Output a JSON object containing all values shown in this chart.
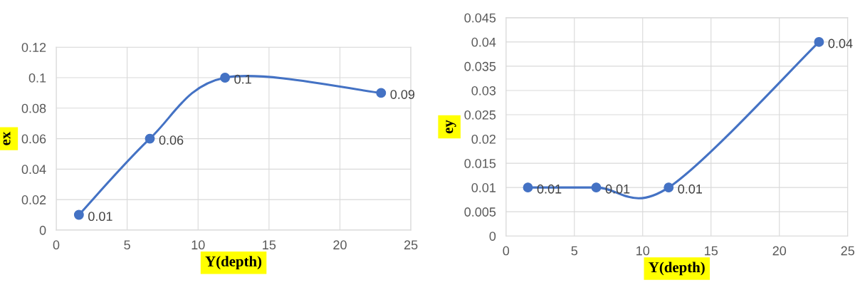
{
  "chart_data": [
    {
      "type": "line",
      "xlabel": "Y(depth)",
      "ylabel": "ex",
      "x": [
        1.6,
        6.6,
        11.9,
        22.9
      ],
      "series": [
        {
          "color": "#4472c4",
          "values": [
            0.01,
            0.06,
            0.1,
            0.09
          ]
        }
      ],
      "xlim": [
        0,
        25
      ],
      "xticks": [
        0,
        5,
        10,
        15,
        20,
        25
      ],
      "ylim": [
        0,
        0.12
      ],
      "yticks": [
        0,
        0.02,
        0.04,
        0.06,
        0.08,
        0.1,
        0.12
      ],
      "grid": true,
      "marker": "circle",
      "line_style": "solid",
      "data_labels": true,
      "legend": false
    },
    {
      "type": "line",
      "xlabel": "Y(depth)",
      "ylabel": "ey",
      "x": [
        1.6,
        6.6,
        11.9,
        22.9
      ],
      "series": [
        {
          "color": "#4472c4",
          "values": [
            0.01,
            0.01,
            0.01,
            0.04
          ]
        }
      ],
      "xlim": [
        0,
        25
      ],
      "xticks": [
        0,
        5,
        10,
        15,
        20,
        25
      ],
      "ylim": [
        0,
        0.045
      ],
      "yticks": [
        0,
        0.005,
        0.01,
        0.015,
        0.02,
        0.025,
        0.03,
        0.035,
        0.04,
        0.045
      ],
      "grid": true,
      "marker": "circle",
      "line_style": "solid",
      "data_labels": true,
      "legend": false
    }
  ]
}
